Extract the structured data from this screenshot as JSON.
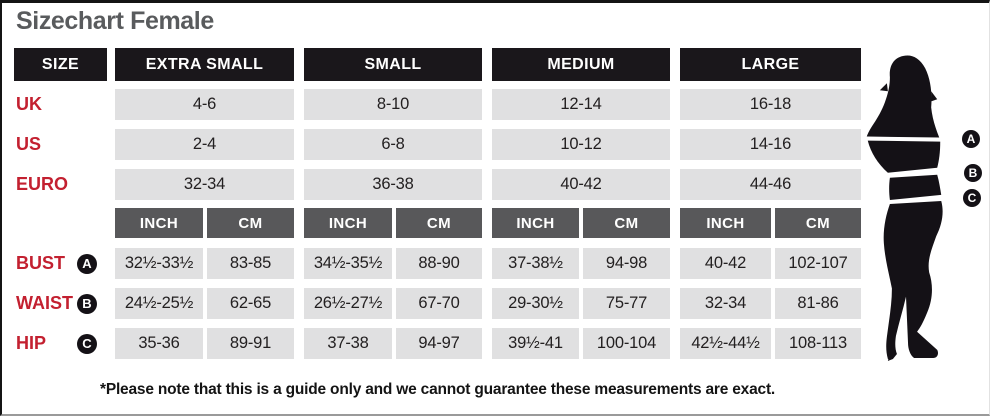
{
  "page": {
    "title": "Sizechart Female",
    "footnote": "*Please note that this is a guide only and we cannot guarantee these measurements are exact."
  },
  "colors": {
    "header_bg": "#1a171b",
    "unit_header_bg": "#58585a",
    "cell_bg": "#e0e0e1",
    "label_red": "#c32030",
    "title_gray": "#595b5d"
  },
  "table": {
    "corner_header": "SIZE",
    "group_headers": [
      "EXTRA SMALL",
      "SMALL",
      "MEDIUM",
      "LARGE"
    ],
    "unit_headers": [
      "INCH",
      "CM"
    ],
    "size_rows": [
      {
        "label": "UK",
        "values": [
          "4-6",
          "8-10",
          "12-14",
          "16-18"
        ]
      },
      {
        "label": "US",
        "values": [
          "2-4",
          "6-8",
          "10-12",
          "14-16"
        ]
      },
      {
        "label": "EURO",
        "values": [
          "32-34",
          "36-38",
          "40-42",
          "44-46"
        ]
      }
    ],
    "measurement_rows": [
      {
        "label": "BUST",
        "marker": "A",
        "inch": [
          "32½-33½",
          "34½-35½",
          "37-38½",
          "40-42"
        ],
        "cm": [
          "83-85",
          "88-90",
          "94-98",
          "102-107"
        ]
      },
      {
        "label": "WAIST",
        "marker": "B",
        "inch": [
          "24½-25½",
          "26½-27½",
          "29-30½",
          "32-34"
        ],
        "cm": [
          "62-65",
          "67-70",
          "75-77",
          "81-86"
        ]
      },
      {
        "label": "HIP",
        "marker": "C",
        "inch": [
          "35-36",
          "37-38",
          "39½-41",
          "42½-44½"
        ],
        "cm": [
          "89-91",
          "94-97",
          "100-104",
          "108-113"
        ]
      }
    ]
  },
  "figure": {
    "markers": [
      "A",
      "B",
      "C"
    ]
  }
}
